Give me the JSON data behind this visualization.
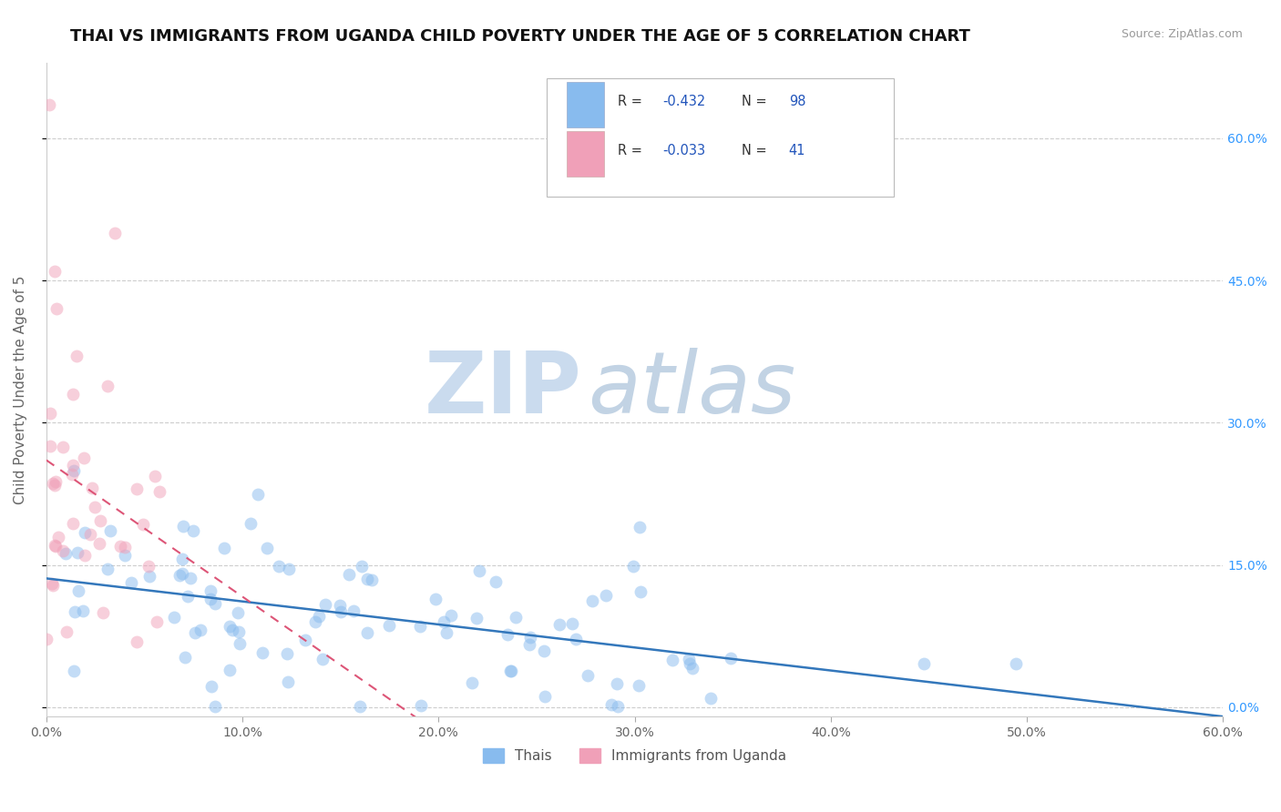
{
  "title": "THAI VS IMMIGRANTS FROM UGANDA CHILD POVERTY UNDER THE AGE OF 5 CORRELATION CHART",
  "source": "Source: ZipAtlas.com",
  "ylabel": "Child Poverty Under the Age of 5",
  "xlim": [
    0.0,
    0.6
  ],
  "ylim": [
    -0.01,
    0.68
  ],
  "xtick_labels": [
    "0.0%",
    "10.0%",
    "20.0%",
    "30.0%",
    "40.0%",
    "50.0%",
    "60.0%"
  ],
  "yticks_right": [
    0.0,
    0.15,
    0.3,
    0.45,
    0.6
  ],
  "ytick_right_labels": [
    "0.0%",
    "15.0%",
    "30.0%",
    "45.0%",
    "60.0%"
  ],
  "blue_R": -0.432,
  "blue_N": 98,
  "pink_R": -0.033,
  "pink_N": 41,
  "background_color": "#ffffff",
  "grid_color": "#c8c8c8",
  "title_fontsize": 13,
  "axis_label_fontsize": 11,
  "tick_fontsize": 10,
  "watermark_text1": "ZIP",
  "watermark_text2": "atlas",
  "watermark_color1": "#c0d0e8",
  "watermark_color2": "#b8cce0",
  "dot_alpha": 0.5,
  "dot_size": 100,
  "blue_dot_color": "#88bbee",
  "pink_dot_color": "#f0a0b8",
  "blue_line_color": "#3377bb",
  "pink_line_color": "#dd5577",
  "bottom_legend_labels": [
    "Thais",
    "Immigrants from Uganda"
  ]
}
